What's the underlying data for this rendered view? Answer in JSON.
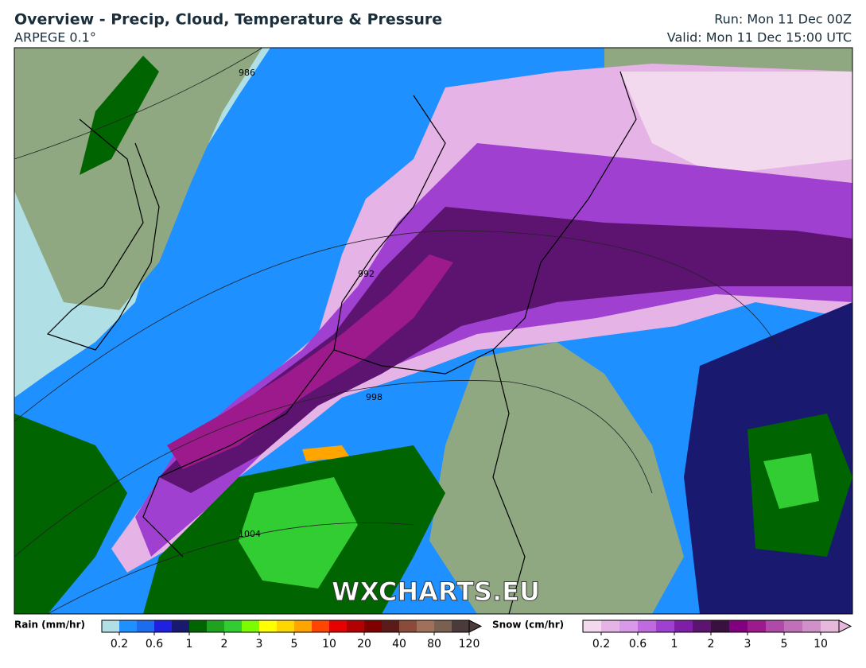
{
  "header": {
    "title": "Overview - Precip, Cloud, Temperature & Pressure",
    "model": "ARPEGE 0.1°",
    "run": "Run: Mon 11 Dec 00Z",
    "valid": "Valid: Mon 11 Dec 15:00 UTC"
  },
  "map": {
    "watermark": "WXCHARTS.EU",
    "isobar_labels": [
      "986",
      "992",
      "998",
      "1004"
    ]
  },
  "legend": {
    "rain": {
      "label": "Rain (mm/hr)",
      "ticks": [
        "0.2",
        "0.6",
        "1",
        "2",
        "3",
        "5",
        "10",
        "20",
        "40",
        "80",
        "120"
      ],
      "colors": [
        "#b0e0e6",
        "#1e90ff",
        "#1c6cf0",
        "#2020e0",
        "#191970",
        "#006400",
        "#1fa31f",
        "#32cd32",
        "#7cfc00",
        "#ffff00",
        "#ffd700",
        "#ffa500",
        "#ff4500",
        "#e60000",
        "#b30000",
        "#800000",
        "#5c1a1a",
        "#8b4a3a",
        "#a0705a",
        "#7a6050",
        "#4a3a3a"
      ]
    },
    "snow": {
      "label": "Snow (cm/hr)",
      "ticks": [
        "0.2",
        "0.6",
        "1",
        "2",
        "3",
        "5",
        "10"
      ],
      "colors": [
        "#f3d9ee",
        "#e6b3e6",
        "#d899e8",
        "#c06ae0",
        "#a040d0",
        "#7f1fa8",
        "#5c1470",
        "#3a1040",
        "#800080",
        "#9c1a8c",
        "#b04aa8",
        "#c070b8",
        "#d090c8",
        "#e6b8dc"
      ]
    }
  }
}
